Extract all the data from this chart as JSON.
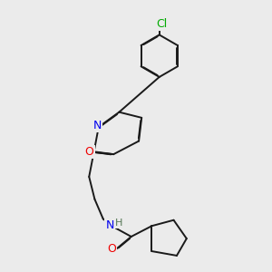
{
  "background_color": "#ebebeb",
  "atom_colors": {
    "N": "#0000ee",
    "O": "#ee0000",
    "Cl": "#00aa00",
    "H": "#557755"
  },
  "bond_color": "#1a1a1a",
  "bond_width": 1.4,
  "figsize": [
    3.0,
    3.0
  ],
  "dpi": 100
}
